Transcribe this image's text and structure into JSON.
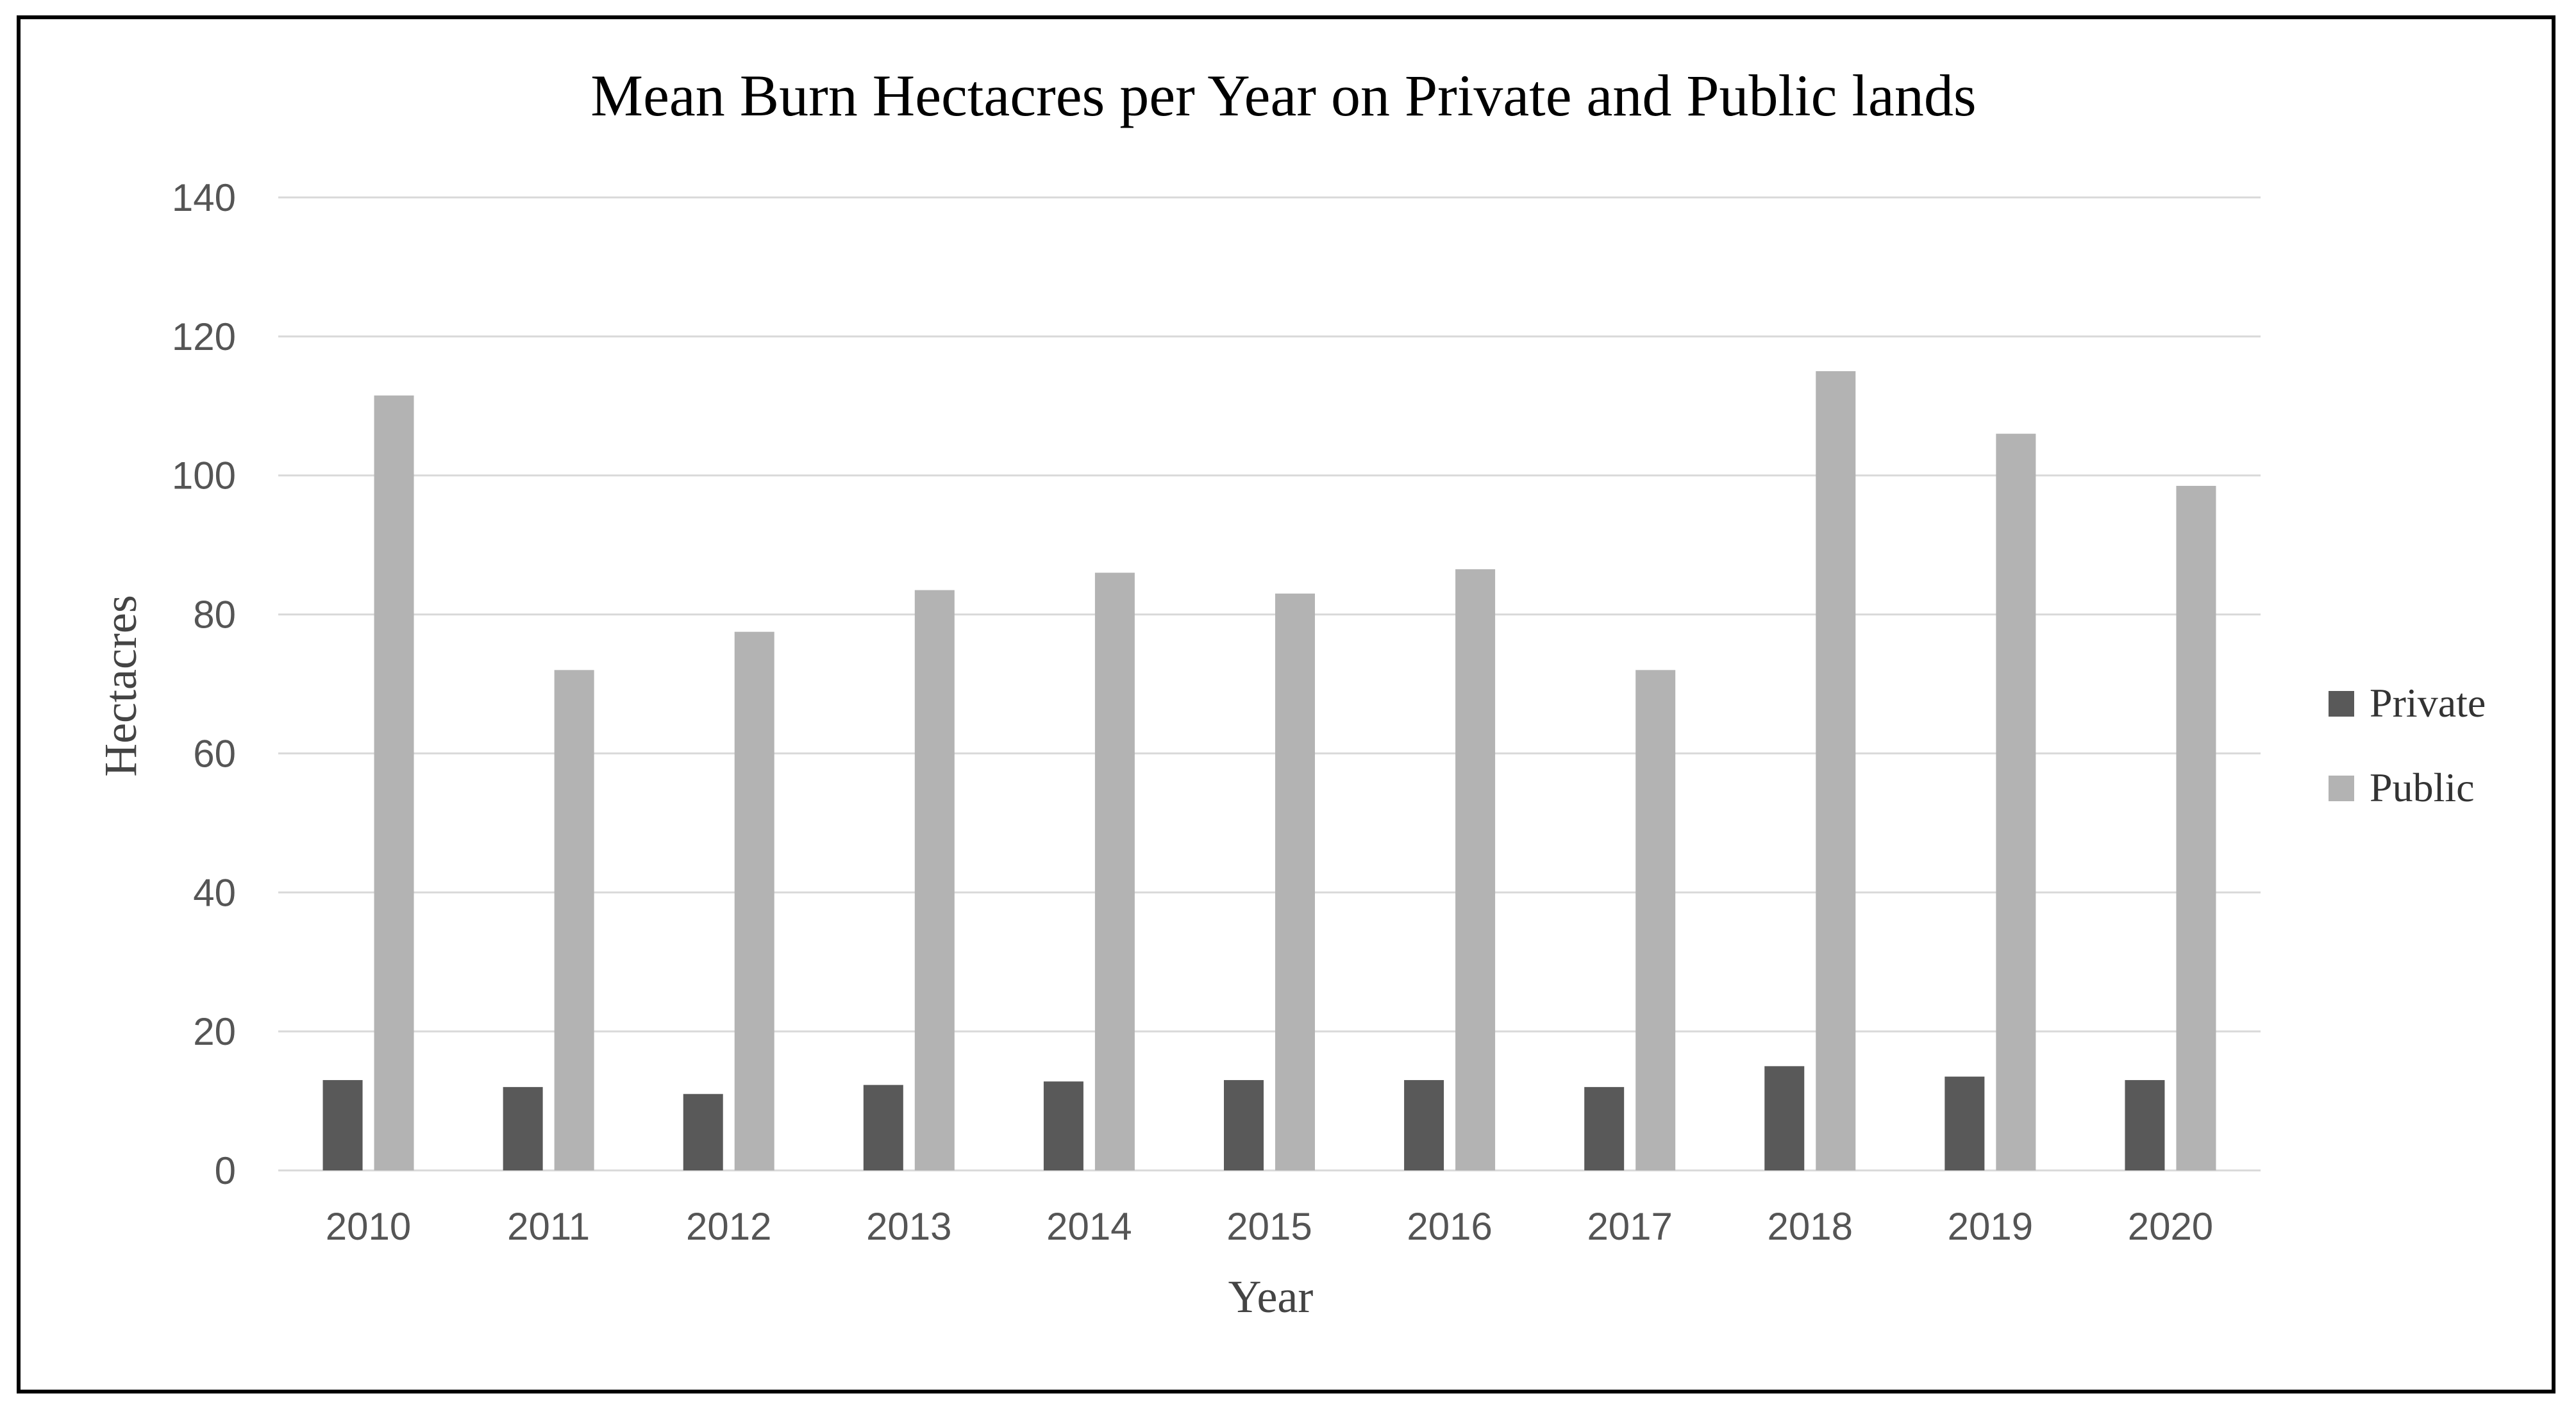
{
  "chart_data": {
    "type": "bar",
    "title": "Mean Burn Hectacres per Year on Private and Public lands",
    "xlabel": "Year",
    "ylabel": "Hectacres",
    "categories": [
      "2010",
      "2011",
      "2012",
      "2013",
      "2014",
      "2015",
      "2016",
      "2017",
      "2018",
      "2019",
      "2020"
    ],
    "series": [
      {
        "name": "Private",
        "color": "#595959",
        "values": [
          13,
          12,
          11,
          12.3,
          12.8,
          13,
          13,
          12,
          15,
          13.5,
          13
        ]
      },
      {
        "name": "Public",
        "color": "#b3b3b3",
        "values": [
          111.5,
          72,
          77.5,
          83.5,
          86,
          83,
          86.5,
          72,
          115,
          106,
          98.5
        ]
      }
    ],
    "ylim": [
      0,
      140
    ],
    "yticks": [
      "0",
      "20",
      "40",
      "60",
      "80",
      "100",
      "120",
      "140"
    ],
    "grid": true,
    "legend_position": "right"
  }
}
